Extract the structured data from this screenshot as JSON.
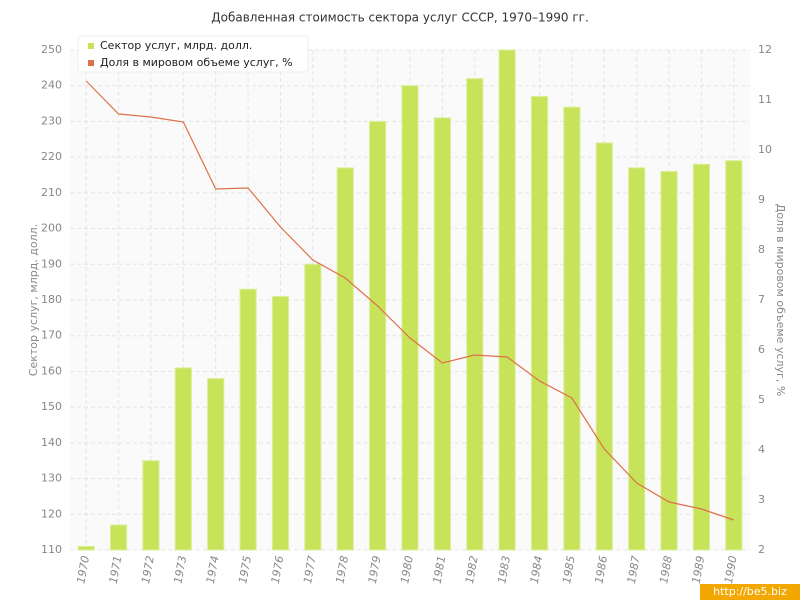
{
  "chart_data": {
    "type": "bar",
    "title": "Добавленная стоимость сектора услуг СССР, 1970–1990 гг.",
    "ylabel": "Сектор услуг, млрд. долл.",
    "y2label": "Доля в мировом объеме услуг, %",
    "watermark": "http://be5.biz",
    "categories": [
      "1970",
      "1971",
      "1972",
      "1973",
      "1974",
      "1975",
      "1976",
      "1977",
      "1978",
      "1979",
      "1980",
      "1981",
      "1982",
      "1983",
      "1984",
      "1985",
      "1986",
      "1987",
      "1988",
      "1989",
      "1990"
    ],
    "series": [
      {
        "name": "Сектор услуг, млрд. долл.",
        "type": "bar",
        "color": "#c6e35a",
        "values": [
          111,
          117,
          135,
          161,
          158,
          183,
          181,
          190,
          217,
          230,
          240,
          231,
          242,
          250,
          237,
          234,
          224,
          217,
          216,
          218,
          219
        ]
      },
      {
        "name": "Доля в мировом объеме услуг, %",
        "type": "line",
        "axis": "y2",
        "color": "#e0704a",
        "values": [
          11.38,
          10.72,
          10.66,
          10.56,
          9.22,
          9.24,
          8.46,
          7.8,
          7.44,
          6.88,
          6.24,
          5.74,
          5.9,
          5.86,
          5.38,
          5.04,
          4.02,
          3.34,
          2.96,
          2.82,
          2.6
        ]
      }
    ],
    "ylim": [
      110,
      250
    ],
    "yticks": [
      110,
      120,
      130,
      140,
      150,
      160,
      170,
      180,
      190,
      200,
      210,
      220,
      230,
      240,
      250
    ],
    "y2lim": [
      2,
      12
    ],
    "y2ticks": [
      2,
      3,
      4,
      5,
      6,
      7,
      8,
      9,
      10,
      11,
      12
    ],
    "grid": true,
    "legend": "top-left"
  }
}
